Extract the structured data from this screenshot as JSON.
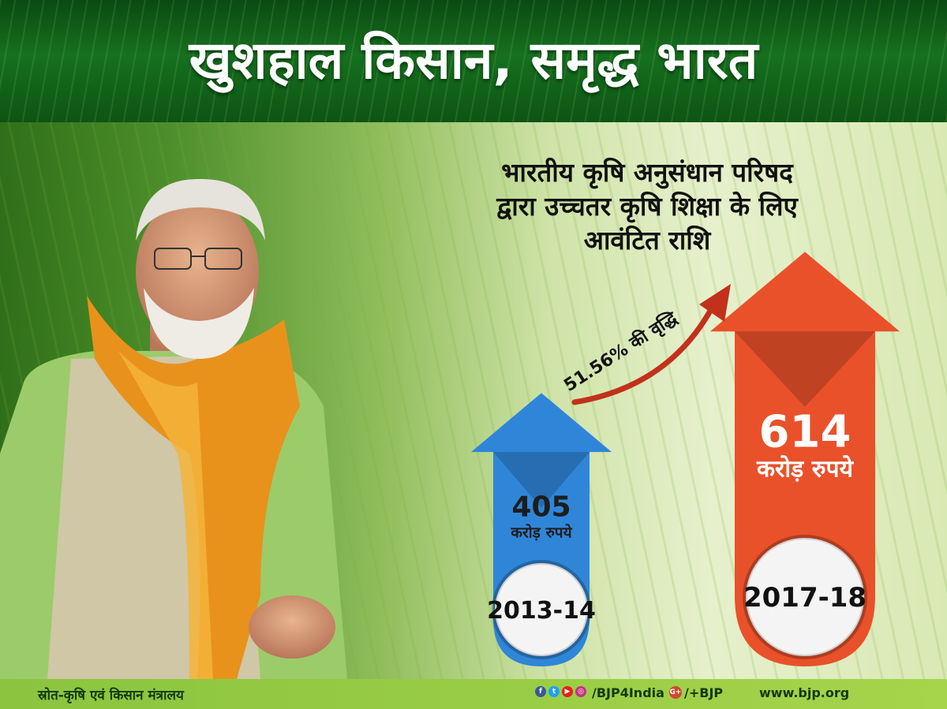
{
  "header": {
    "title": "खुशहाल किसान, समृद्ध भारत"
  },
  "subtitle": {
    "lines": [
      "भारतीय कृषि अनुसंधान परिषद",
      "द्वारा उच्चतर कृषि शिक्षा के लिए",
      "आवंटित राशि"
    ]
  },
  "colors": {
    "old_arrow": "#2f86d8",
    "new_arrow": "#e9512a",
    "growth_arrow": "#c2311b",
    "header": "#16701f",
    "footer": "#a6d44b"
  },
  "chart_data": {
    "type": "bar",
    "categories": [
      "2013-14",
      "2017-18"
    ],
    "values": [
      405,
      614
    ],
    "value_labels": [
      "405",
      "614"
    ],
    "unit": "करोड़ रुपये",
    "annotation": "51.56% की वृद्धि",
    "title": "",
    "xlabel": "",
    "ylabel": ""
  },
  "footer": {
    "source": "स्रोत-कृषि एवं किसान मंत्रालय",
    "social_icons": [
      "facebook-icon",
      "twitter-icon",
      "youtube-icon",
      "instagram-icon"
    ],
    "handle": "/BJP4India",
    "gplus_icon": "google-plus-icon",
    "gplus_label": "G+",
    "gplus_handle": "/+BJP",
    "website": "www.bjp.org"
  }
}
